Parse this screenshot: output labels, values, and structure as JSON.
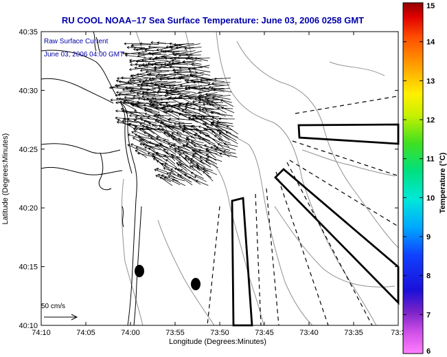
{
  "title": "RU COOL  NOAA–17  Sea Surface Temperature:  June 03, 2006 0258 GMT",
  "inset": {
    "line1": "Raw Surface Current",
    "line2": "June 03, 2006 04:00 GMT"
  },
  "axes": {
    "xlabel": "Longitude (Degrees:Minutes)",
    "ylabel": "Latitude (Degrees:Minutes)",
    "xticks": [
      "74:10",
      "74:05",
      "74:00",
      "73:55",
      "73:50",
      "73:45",
      "73:40",
      "73:35",
      "73:3"
    ],
    "yticks": [
      "40:35",
      "40:30",
      "40:25",
      "40:20",
      "40:15",
      "40:10"
    ]
  },
  "scale_arrow": {
    "label": "50 cm/s"
  },
  "colorbar": {
    "label": "Temperature (°C)",
    "ticks": [
      "15",
      "14",
      "13",
      "12",
      "11",
      "10",
      "9",
      "8",
      "7",
      "6"
    ]
  },
  "colors": {
    "title": "#0000aa",
    "inset_text": "#0000aa",
    "coast": "#000000",
    "bathymetry": "#888888"
  }
}
